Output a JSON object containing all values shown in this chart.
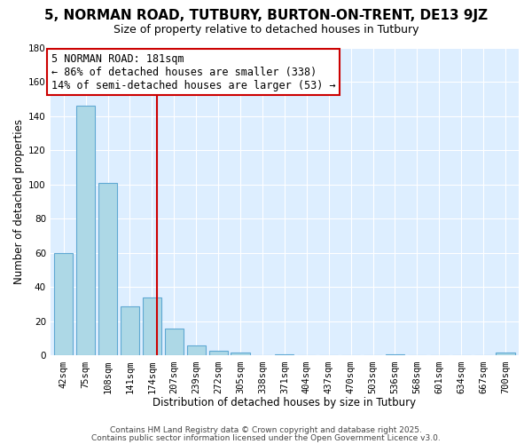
{
  "title": "5, NORMAN ROAD, TUTBURY, BURTON-ON-TRENT, DE13 9JZ",
  "subtitle": "Size of property relative to detached houses in Tutbury",
  "xlabel": "Distribution of detached houses by size in Tutbury",
  "ylabel": "Number of detached properties",
  "bar_labels": [
    "42sqm",
    "75sqm",
    "108sqm",
    "141sqm",
    "174sqm",
    "207sqm",
    "239sqm",
    "272sqm",
    "305sqm",
    "338sqm",
    "371sqm",
    "404sqm",
    "437sqm",
    "470sqm",
    "503sqm",
    "536sqm",
    "568sqm",
    "601sqm",
    "634sqm",
    "667sqm",
    "700sqm"
  ],
  "bar_values": [
    60,
    146,
    101,
    29,
    34,
    16,
    6,
    3,
    2,
    0,
    1,
    0,
    0,
    0,
    0,
    1,
    0,
    0,
    0,
    0,
    2
  ],
  "bar_color": "#add8e6",
  "bar_edge_color": "#5fa8d3",
  "vline_color": "#cc0000",
  "vline_x": 4.212,
  "ylim": [
    0,
    180
  ],
  "yticks": [
    0,
    20,
    40,
    60,
    80,
    100,
    120,
    140,
    160,
    180
  ],
  "annotation_text": "5 NORMAN ROAD: 181sqm\n← 86% of detached houses are smaller (338)\n14% of semi-detached houses are larger (53) →",
  "annotation_box_facecolor": "#ffffff",
  "annotation_box_edgecolor": "#cc0000",
  "background_color": "#ddeeff",
  "footer_line1": "Contains HM Land Registry data © Crown copyright and database right 2025.",
  "footer_line2": "Contains public sector information licensed under the Open Government Licence v3.0.",
  "title_fontsize": 11,
  "subtitle_fontsize": 9,
  "axis_label_fontsize": 8.5,
  "tick_fontsize": 7.5,
  "annotation_fontsize": 8.5,
  "footer_fontsize": 6.5
}
